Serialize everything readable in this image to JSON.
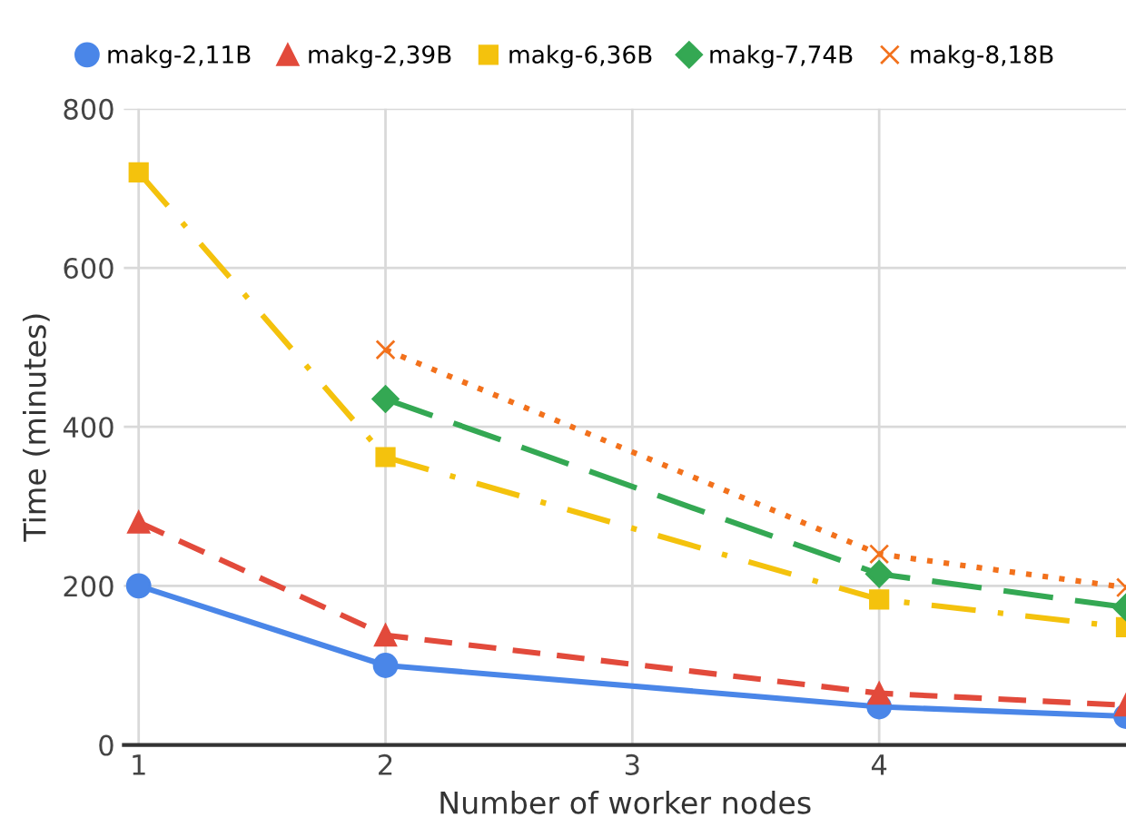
{
  "chart_data": {
    "type": "line",
    "xlabel": "Number of worker nodes",
    "ylabel": "Time (minutes)",
    "x": [
      1,
      2,
      4,
      5
    ],
    "xlim": [
      0.94,
      5
    ],
    "xticks": [
      1,
      2,
      3,
      4
    ],
    "ylim": [
      0,
      800
    ],
    "yticks": [
      0,
      200,
      400,
      600,
      800
    ],
    "grid": true,
    "legend": "top",
    "series": [
      {
        "name": "makg-2,11B",
        "color": "#4a86e8",
        "marker": "circle",
        "line_style": "solid",
        "values": [
          200,
          100,
          48,
          36
        ]
      },
      {
        "name": "makg-2,39B",
        "color": "#e24a3b",
        "marker": "triangle",
        "line_style": "dashed",
        "values": [
          280,
          138,
          65,
          50
        ]
      },
      {
        "name": "makg-6,36B",
        "color": "#f4c20d",
        "marker": "square",
        "line_style": "dashdot",
        "values": [
          720,
          362,
          183,
          148
        ]
      },
      {
        "name": "makg-7,74B",
        "color": "#34a853",
        "marker": "diamond",
        "line_style": "longdash",
        "values": [
          null,
          435,
          215,
          173
        ]
      },
      {
        "name": "makg-8,18B",
        "color": "#f2711c",
        "marker": "cross",
        "line_style": "dotted",
        "values": [
          null,
          497,
          240,
          198
        ]
      }
    ]
  }
}
